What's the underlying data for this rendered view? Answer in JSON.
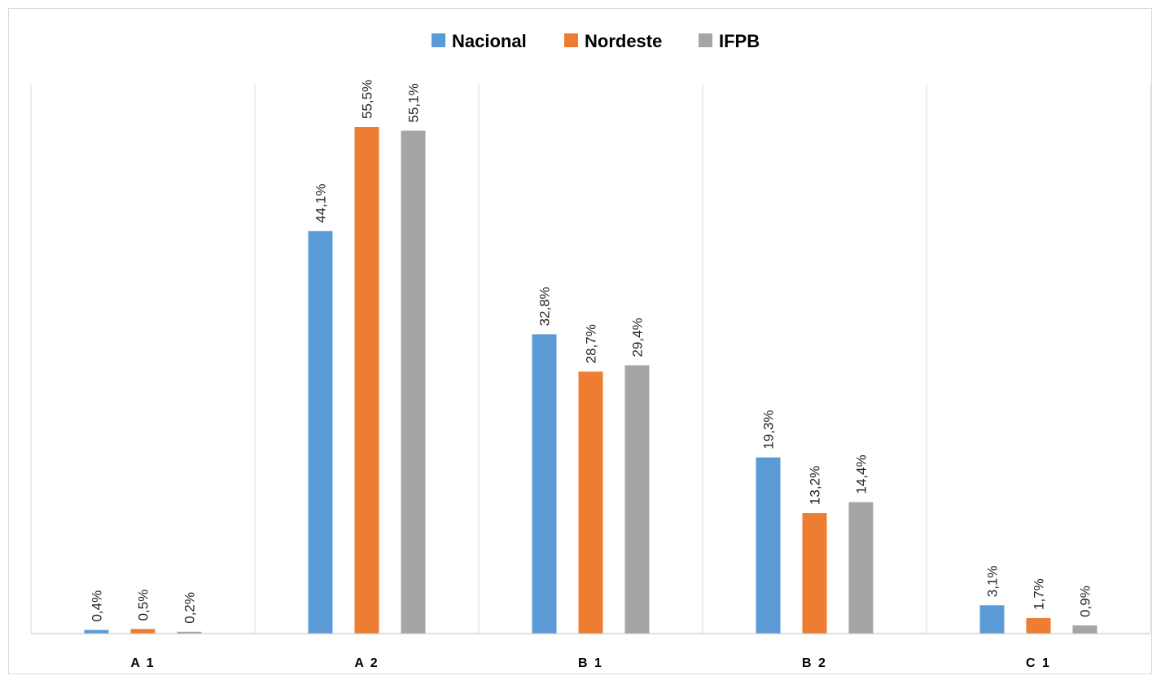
{
  "chart_data": {
    "type": "bar",
    "categories": [
      "A1",
      "A2",
      "B1",
      "B2",
      "C1"
    ],
    "series": [
      {
        "name": "Nacional",
        "values": [
          0.4,
          44.1,
          32.8,
          19.3,
          3.1
        ],
        "labels": [
          "0,4%",
          "44,1%",
          "32,8%",
          "19,3%",
          "3,1%"
        ],
        "color": "#5b9bd5"
      },
      {
        "name": "Nordeste",
        "values": [
          0.5,
          55.5,
          28.7,
          13.2,
          1.7
        ],
        "labels": [
          "0,5%",
          "55,5%",
          "28,7%",
          "13,2%",
          "1,7%"
        ],
        "color": "#ed7d31"
      },
      {
        "name": "IFPB",
        "values": [
          0.2,
          55.1,
          29.4,
          14.4,
          0.9
        ],
        "labels": [
          "0,2%",
          "55,1%",
          "29,4%",
          "14,4%",
          "0,9%"
        ],
        "color": "#a5a5a5"
      }
    ],
    "category_labels": [
      "A 1",
      "A 2",
      "B 1",
      "B 2",
      "C 1"
    ],
    "ylim": [
      0,
      60
    ],
    "legend_position": "top",
    "grid": "vertical-category-separators"
  }
}
